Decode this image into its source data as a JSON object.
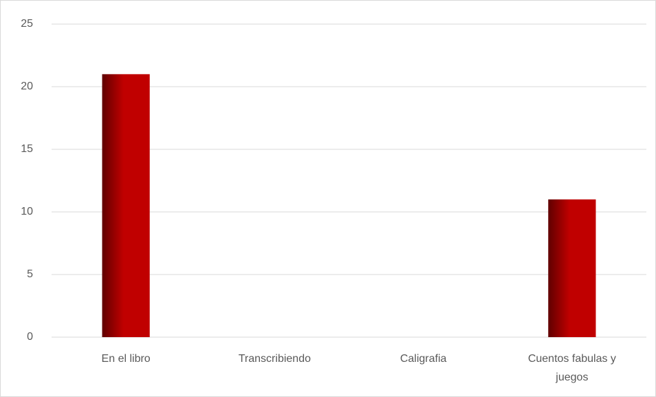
{
  "chart_data": {
    "type": "bar",
    "categories": [
      "En el libro",
      "Transcribiendo",
      "Caligrafia",
      "Cuentos fabulas y juegos"
    ],
    "values": [
      21,
      0,
      0,
      11
    ],
    "color": "#c00000",
    "ylim": [
      0,
      25
    ],
    "yticks": [
      0,
      5,
      10,
      15,
      20,
      25
    ],
    "grid": true
  }
}
